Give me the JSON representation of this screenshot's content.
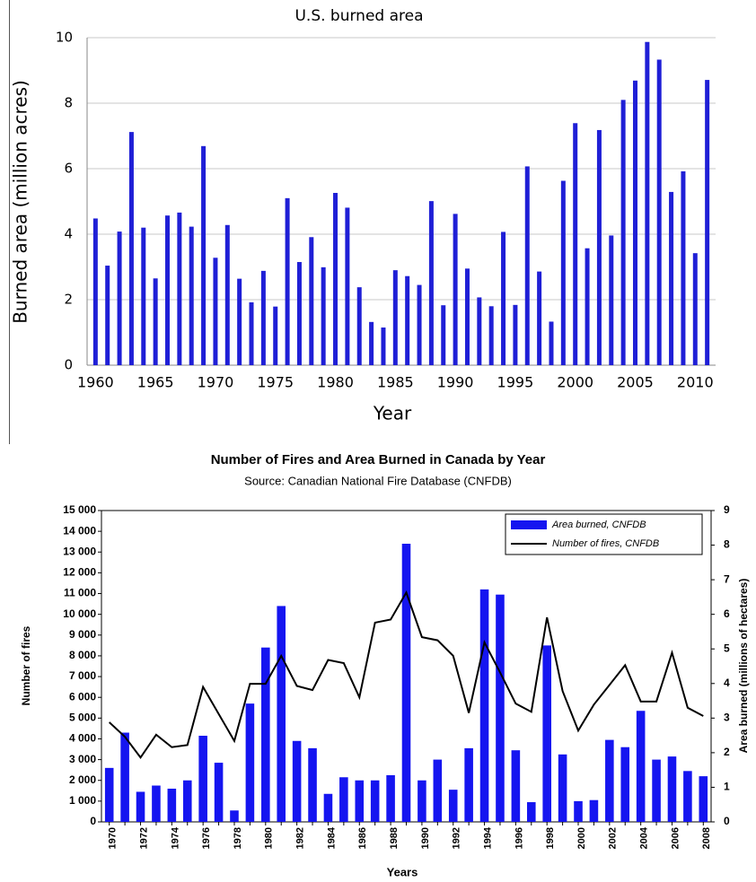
{
  "chart_data": [
    {
      "type": "bar",
      "title": "U.S. burned area",
      "x_label": "Year",
      "y_label": "Burned  area (million acres)",
      "x": [
        1960,
        1961,
        1962,
        1963,
        1964,
        1965,
        1966,
        1967,
        1968,
        1969,
        1970,
        1971,
        1972,
        1973,
        1974,
        1975,
        1976,
        1977,
        1978,
        1979,
        1980,
        1981,
        1982,
        1983,
        1984,
        1985,
        1986,
        1987,
        1988,
        1989,
        1990,
        1991,
        1992,
        1993,
        1994,
        1995,
        1996,
        1997,
        1998,
        1999,
        2000,
        2001,
        2002,
        2003,
        2004,
        2005,
        2006,
        2007,
        2008,
        2009,
        2010,
        2011
      ],
      "values": [
        4.48,
        3.04,
        4.08,
        7.12,
        4.2,
        2.65,
        4.57,
        4.66,
        4.23,
        6.69,
        3.28,
        4.28,
        2.64,
        1.92,
        2.88,
        1.79,
        5.1,
        3.15,
        3.91,
        2.99,
        5.26,
        4.81,
        2.38,
        1.32,
        1.15,
        2.9,
        2.72,
        2.45,
        5.01,
        1.83,
        4.62,
        2.95,
        2.07,
        1.8,
        4.07,
        1.84,
        6.07,
        2.86,
        1.33,
        5.63,
        7.39,
        3.57,
        7.18,
        3.96,
        8.1,
        8.69,
        9.87,
        9.33,
        5.29,
        5.92,
        3.42,
        8.71
      ],
      "color": "#1f1fd6",
      "xlim": [
        1959.3,
        2011.7
      ],
      "xticks": [
        1960,
        1965,
        1970,
        1975,
        1980,
        1985,
        1990,
        1995,
        2000,
        2005,
        2010
      ],
      "ylim": [
        0,
        10
      ],
      "yticks": [
        0,
        2,
        4,
        6,
        8,
        10
      ],
      "grid": true
    },
    {
      "type": "combo",
      "title": "Number of Fires and Area Burned in Canada by Year",
      "subtitle": "Source: Canadian National Fire Database (CNFDB)",
      "x_label": "Years",
      "y_label": "Number of fires",
      "y2_label": "Area burned (millions of hectares)",
      "categories": [
        "1970",
        null,
        "1972",
        null,
        "1974",
        null,
        "1976",
        null,
        "1978",
        null,
        "1980",
        null,
        "1982",
        null,
        "1984",
        null,
        "1986",
        null,
        "1988",
        null,
        "1990",
        null,
        "1992",
        null,
        "1994",
        null,
        "1996",
        null,
        "1998",
        null,
        "2000",
        null,
        "2002",
        null,
        "2004",
        null,
        "2006",
        null,
        "2008"
      ],
      "series": [
        {
          "name": "Area burned, CNFDB",
          "type": "bar",
          "axis": "y2",
          "color": "#1515f0",
          "values": [
            1.56,
            2.58,
            0.87,
            1.05,
            0.96,
            1.2,
            2.49,
            1.71,
            0.33,
            3.42,
            5.04,
            6.24,
            2.34,
            2.13,
            0.81,
            1.29,
            1.2,
            1.2,
            1.35,
            8.04,
            1.2,
            1.8,
            0.93,
            2.13,
            6.72,
            6.57,
            2.07,
            0.57,
            5.1,
            1.95,
            0.6,
            0.63,
            2.37,
            2.16,
            3.21,
            1.8,
            1.89,
            1.47,
            1.32
          ]
        },
        {
          "name": "Number of fires, CNFDB",
          "type": "line",
          "color": "#000000",
          "values": [
            4800,
            4100,
            3100,
            4200,
            3600,
            3700,
            6500,
            5200,
            3900,
            6650,
            6650,
            8000,
            6550,
            6350,
            7800,
            7650,
            6000,
            9600,
            9750,
            11050,
            8900,
            8750,
            8000,
            5250,
            8650,
            7200,
            5700,
            5300,
            9850,
            6300,
            4400,
            5650,
            6600,
            7550,
            5800,
            5800,
            8150,
            5500,
            5100
          ]
        }
      ],
      "ylim": [
        0,
        15000
      ],
      "yticks": [
        0,
        {
          "value": 1000,
          "label": "1 000"
        },
        {
          "value": 2000,
          "label": "2 000"
        },
        {
          "value": 3000,
          "label": "3 000"
        },
        {
          "value": 4000,
          "label": "4 000"
        },
        {
          "value": 5000,
          "label": "5 000"
        },
        {
          "value": 6000,
          "label": "6 000"
        },
        {
          "value": 7000,
          "label": "7 000"
        },
        {
          "value": 8000,
          "label": "8 000"
        },
        {
          "value": 9000,
          "label": "9 000"
        },
        {
          "value": 10000,
          "label": "10 000"
        },
        {
          "value": 11000,
          "label": "11 000"
        },
        {
          "value": 12000,
          "label": "12 000"
        },
        {
          "value": 13000,
          "label": "13 000"
        },
        {
          "value": 14000,
          "label": "14 000"
        },
        {
          "value": 15000,
          "label": "15 000"
        }
      ],
      "y2lim": [
        0,
        9
      ],
      "y2ticks": [
        0,
        1,
        2,
        3,
        4,
        5,
        6,
        7,
        8,
        9
      ],
      "grid": false,
      "legend": "upper right"
    }
  ]
}
